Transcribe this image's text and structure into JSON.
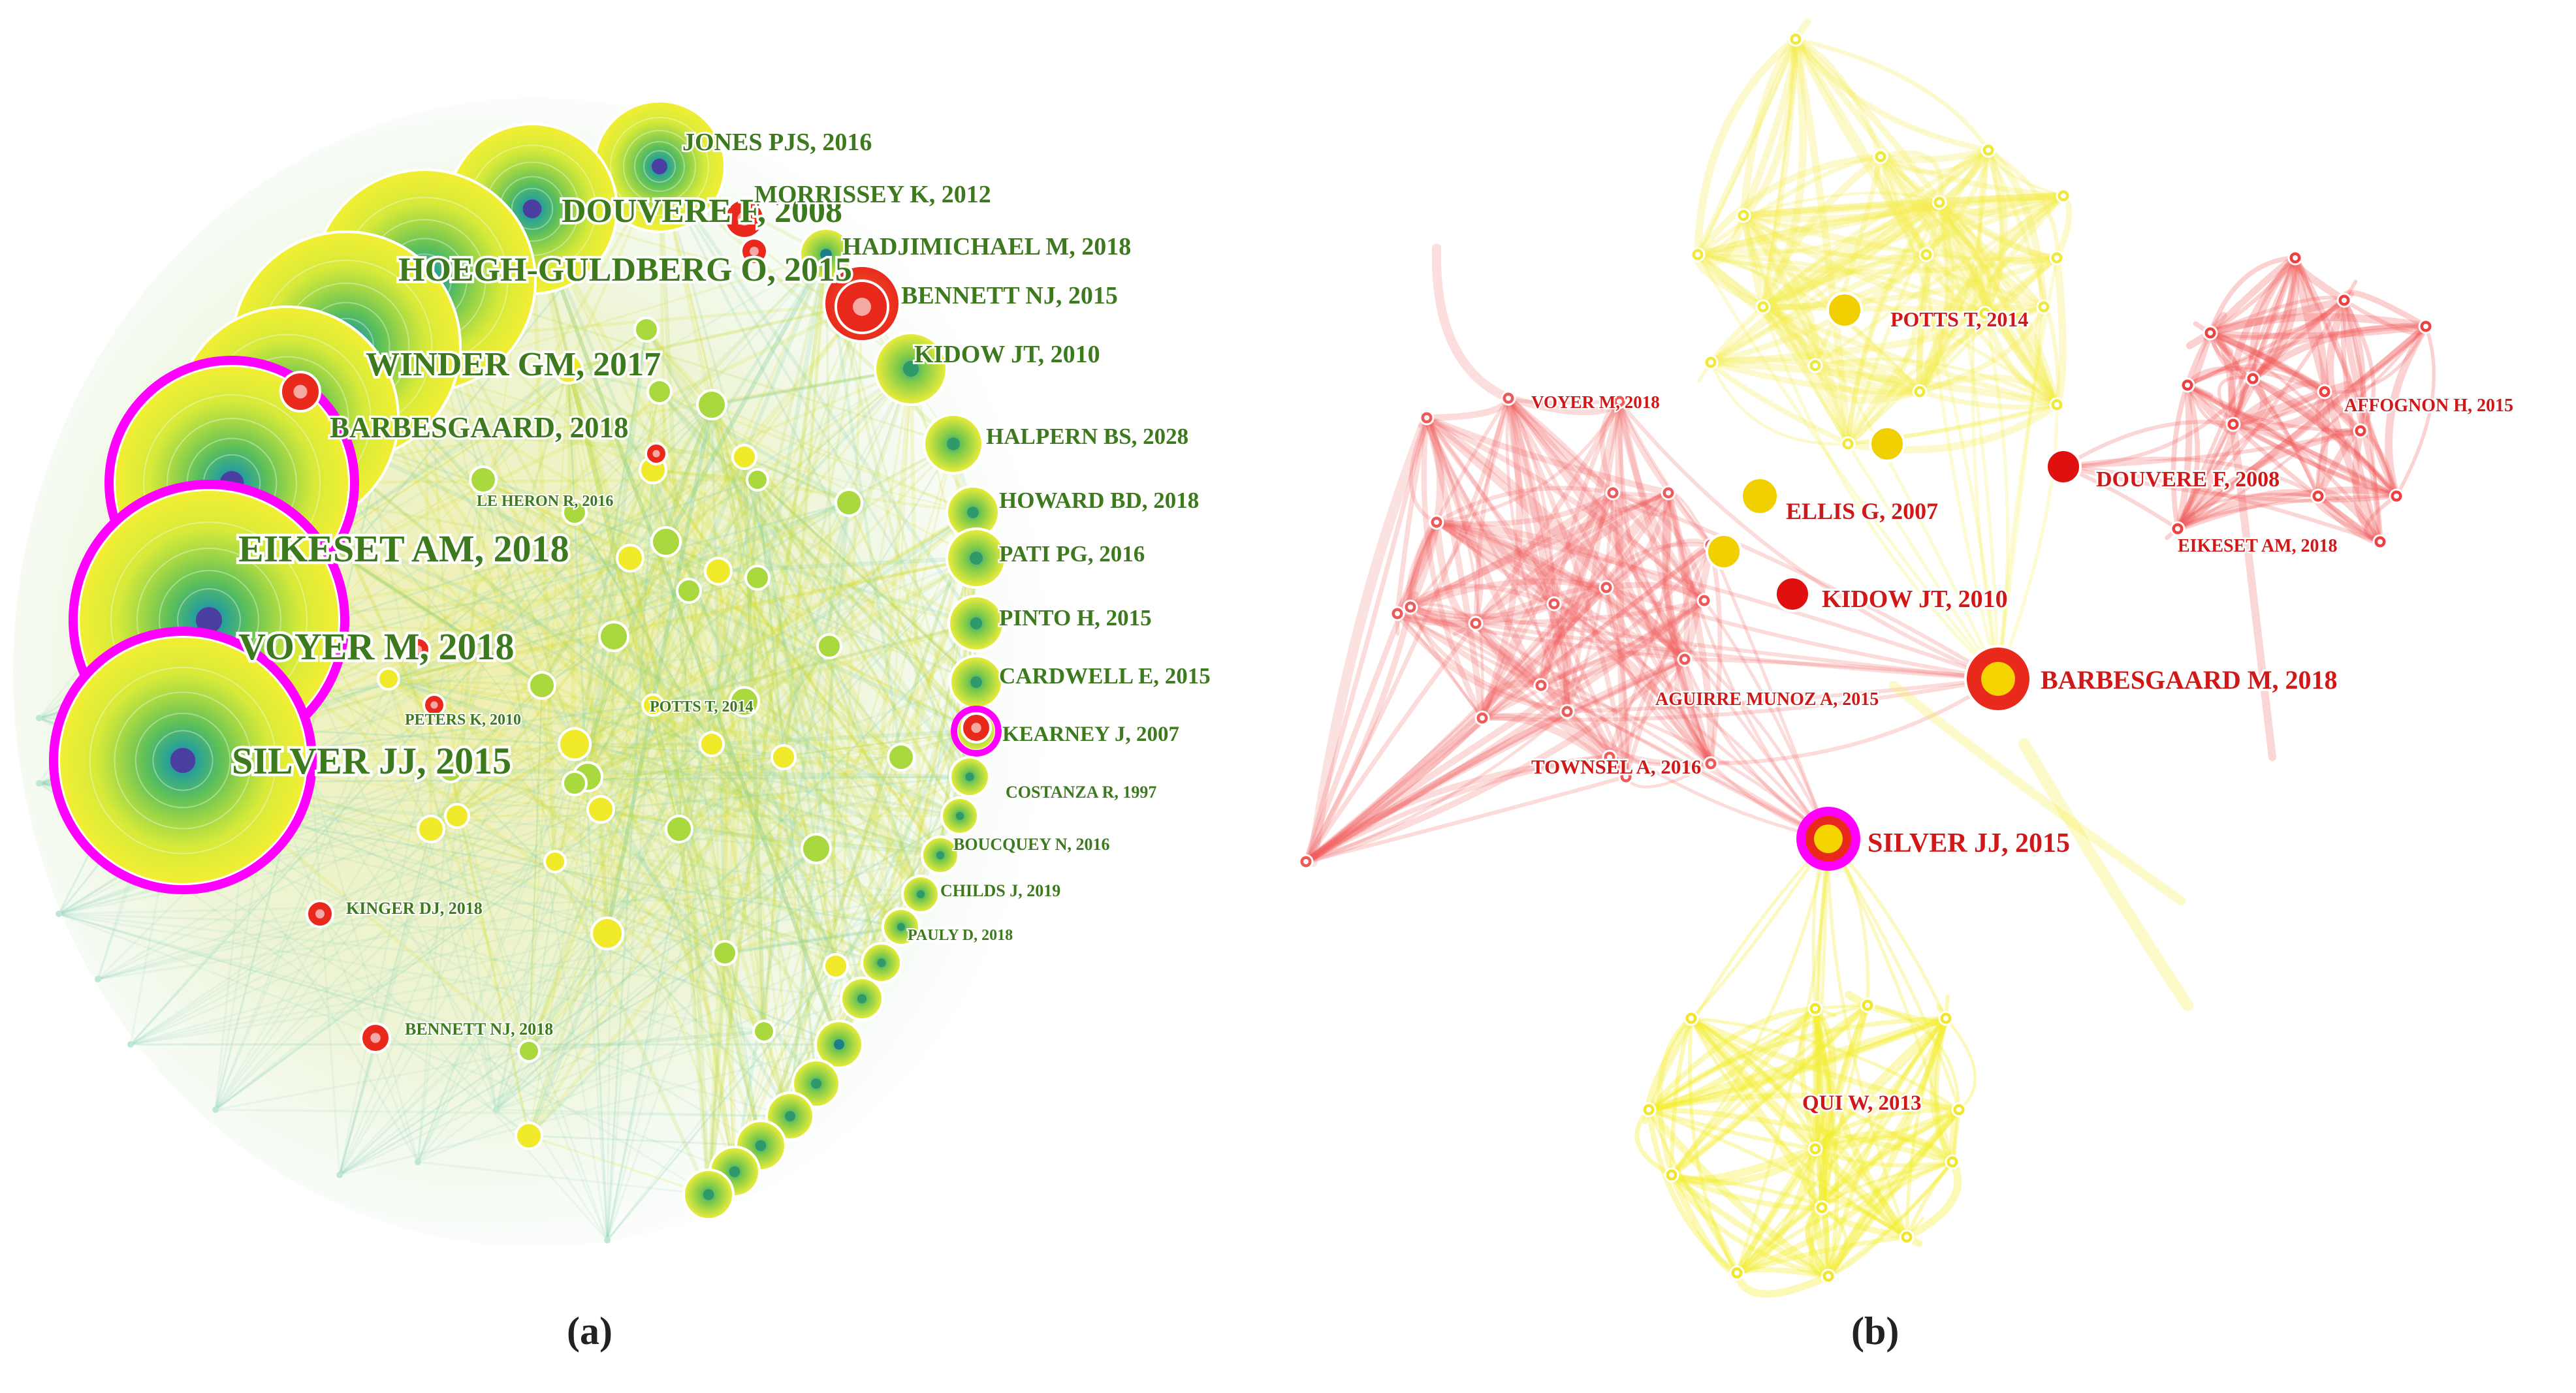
{
  "figure": {
    "panel_a": {
      "caption": "(a)",
      "labels": [
        "JONES PJS, 2016",
        "DOUVERE F, 2008",
        "HOEGH-GULDBERG O, 2015",
        "MORRISSEY K, 2012",
        "HADJIMICHAEL M, 2018",
        "BENNETT NJ, 2015",
        "WINDER GM, 2017",
        "KIDOW JT, 2010",
        "BARBESGAARD, 2018",
        "HALPERN BS, 2028",
        "LE HERON R, 2016",
        "HOWARD BD, 2018",
        "EIKESET AM, 2018",
        "PATI PG, 2016",
        "PINTO H, 2015",
        "VOYER M, 2018",
        "CARDWELL E, 2015",
        "POTTS T, 2014",
        "PETERS K, 2010",
        "KEARNEY J, 2007",
        "SILVER JJ, 2015",
        "COSTANZA R, 1997",
        "BOUCQUEY N, 2016",
        "CHILDS J, 2019",
        "KINGER DJ, 2018",
        "PAULY D, 2018",
        "BENNETT NJ, 2018"
      ]
    },
    "panel_b": {
      "caption": "(b)",
      "labels": [
        "POTTS T, 2014",
        "VOYER M, 2018",
        "AFFOGNON H, 2015",
        "DOUVERE F, 2008",
        "ELLIS G, 2007",
        "EIKESET AM, 2018",
        "KIDOW JT, 2010",
        "BARBESGAARD M, 2018",
        "AGUIRRE MUNOZ A, 2015",
        "TOWNSEL A, 2016",
        "SILVER JJ, 2015",
        "QUI W, 2013"
      ]
    }
  },
  "colors": {
    "label_a": "#3d7a1e",
    "label_b": "#d01818",
    "halo": "#ff00ff",
    "yellow": "#f5ee2a",
    "red": "#e8291c",
    "teal": "#2aa198",
    "green": "#8cc63f"
  }
}
